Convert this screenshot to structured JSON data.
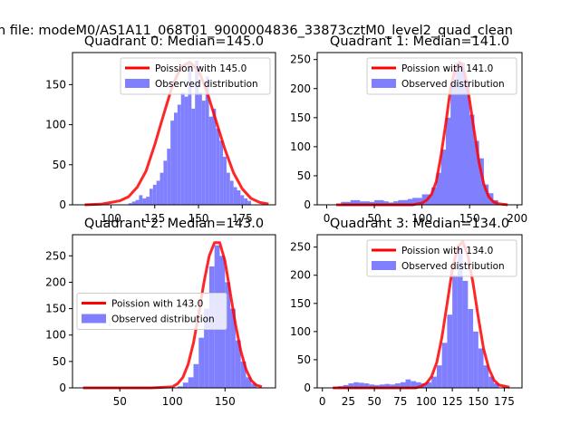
{
  "figure_title": "n file: modeM0/AS1A11_068T01_9000004836_33873cztM0_level2_quad_clean",
  "colors": {
    "poisson": "#ff0000",
    "observed": "#8080ff",
    "axis": "#000000"
  },
  "chart_data": [
    {
      "type": "histogram+line",
      "title": "Quadrant 0: Median=145.0",
      "xlim": [
        78,
        194
      ],
      "ylim": [
        0,
        190
      ],
      "xticks": [
        100,
        125,
        150,
        175
      ],
      "yticks": [
        0,
        50,
        100,
        150
      ],
      "legend": {
        "placement": "top-right",
        "line_label": "Poission with 145.0",
        "bar_label": "Observed distribution"
      },
      "hist": {
        "x": [
          110,
          112,
          114,
          116,
          118,
          120,
          122,
          124,
          126,
          128,
          130,
          132,
          134,
          136,
          138,
          140,
          142,
          144,
          146,
          148,
          150,
          152,
          154,
          156,
          158,
          160,
          162,
          164,
          166,
          168,
          170,
          172,
          174,
          176,
          178
        ],
        "y": [
          2,
          4,
          6,
          12,
          8,
          10,
          20,
          25,
          30,
          40,
          55,
          70,
          105,
          115,
          125,
          140,
          135,
          175,
          120,
          180,
          140,
          130,
          160,
          110,
          120,
          95,
          80,
          60,
          40,
          30,
          22,
          18,
          12,
          8,
          5
        ]
      },
      "poisson": {
        "x": [
          85,
          95,
          105,
          110,
          115,
          120,
          125,
          130,
          135,
          140,
          145,
          150,
          155,
          160,
          165,
          170,
          175,
          180,
          185,
          190
        ],
        "y": [
          0,
          1,
          5,
          10,
          22,
          42,
          75,
          112,
          148,
          172,
          178,
          168,
          140,
          105,
          70,
          40,
          20,
          8,
          3,
          1
        ]
      }
    },
    {
      "type": "histogram+line",
      "title": "Quadrant 1: Median=141.0",
      "xlim": [
        -10,
        205
      ],
      "ylim": [
        0,
        262
      ],
      "xticks": [
        0,
        50,
        100,
        150,
        200
      ],
      "yticks": [
        0,
        50,
        100,
        150,
        200,
        250
      ],
      "legend": {
        "placement": "top-right",
        "line_label": "Poission with 141.0",
        "bar_label": "Observed distribution"
      },
      "hist": {
        "x": [
          15,
          25,
          30,
          35,
          40,
          45,
          50,
          55,
          60,
          65,
          70,
          75,
          80,
          85,
          90,
          95,
          100,
          105,
          110,
          115,
          120,
          125,
          130,
          135,
          140,
          145,
          150,
          155,
          160,
          165,
          170
        ],
        "y": [
          5,
          8,
          4,
          6,
          5,
          4,
          8,
          6,
          4,
          2,
          6,
          8,
          8,
          10,
          12,
          10,
          18,
          14,
          30,
          55,
          95,
          150,
          210,
          245,
          215,
          155,
          110,
          80,
          35,
          20,
          8
        ]
      },
      "poisson": {
        "x": [
          10,
          60,
          90,
          100,
          105,
          110,
          115,
          120,
          125,
          130,
          135,
          140,
          145,
          150,
          155,
          160,
          165,
          170,
          175,
          180,
          190
        ],
        "y": [
          0,
          0,
          0,
          3,
          8,
          18,
          40,
          85,
          140,
          200,
          235,
          245,
          225,
          180,
          125,
          72,
          35,
          14,
          5,
          2,
          0
        ]
      }
    },
    {
      "type": "histogram+line",
      "title": "Quadrant 2: Median=143.0",
      "xlim": [
        5,
        198
      ],
      "ylim": [
        0,
        290
      ],
      "xticks": [
        50,
        100,
        150
      ],
      "yticks": [
        0,
        50,
        100,
        150,
        200,
        250
      ],
      "legend": {
        "placement": "center-left",
        "line_label": "Poission with 143.0",
        "bar_label": "Observed distribution"
      },
      "hist": {
        "x": [
          105,
          110,
          115,
          120,
          125,
          130,
          135,
          140,
          145,
          150,
          155,
          160,
          165,
          170,
          175
        ],
        "y": [
          3,
          10,
          20,
          45,
          95,
          150,
          230,
          270,
          250,
          200,
          150,
          90,
          50,
          20,
          8
        ]
      },
      "poisson": {
        "x": [
          15,
          80,
          100,
          105,
          110,
          115,
          120,
          125,
          130,
          135,
          140,
          145,
          150,
          155,
          160,
          165,
          170,
          175,
          180,
          185
        ],
        "y": [
          0,
          0,
          2,
          8,
          20,
          45,
          85,
          140,
          200,
          250,
          275,
          275,
          240,
          180,
          120,
          70,
          35,
          14,
          5,
          2
        ]
      }
    },
    {
      "type": "histogram+line",
      "title": "Quadrant 3: Median=134.0",
      "xlim": [
        -5,
        192
      ],
      "ylim": [
        0,
        272
      ],
      "xticks": [
        0,
        25,
        50,
        75,
        100,
        125,
        150,
        175
      ],
      "yticks": [
        0,
        50,
        100,
        150,
        200,
        250
      ],
      "legend": {
        "placement": "top-right",
        "line_label": "Poission with 134.0",
        "bar_label": "Observed distribution"
      },
      "hist": {
        "x": [
          15,
          20,
          25,
          30,
          35,
          40,
          45,
          50,
          55,
          60,
          65,
          70,
          75,
          80,
          85,
          90,
          95,
          100,
          105,
          110,
          115,
          120,
          125,
          130,
          135,
          140,
          145,
          150,
          155,
          160,
          165
        ],
        "y": [
          3,
          5,
          8,
          10,
          9,
          8,
          6,
          5,
          6,
          7,
          6,
          8,
          10,
          15,
          12,
          10,
          8,
          10,
          20,
          40,
          80,
          130,
          200,
          250,
          190,
          140,
          100,
          70,
          40,
          20,
          8
        ]
      },
      "poisson": {
        "x": [
          10,
          70,
          90,
          95,
          100,
          105,
          110,
          115,
          120,
          125,
          130,
          135,
          140,
          145,
          150,
          155,
          160,
          165,
          170,
          180
        ],
        "y": [
          0,
          0,
          0,
          3,
          8,
          20,
          45,
          90,
          150,
          210,
          250,
          260,
          235,
          185,
          125,
          70,
          35,
          14,
          5,
          1
        ]
      }
    }
  ]
}
